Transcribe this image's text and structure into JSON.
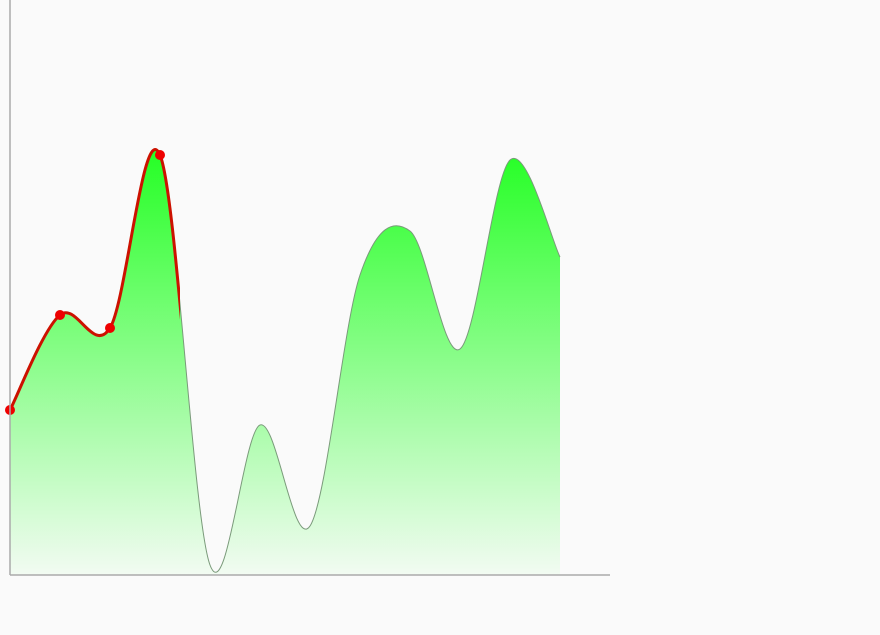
{
  "chart_data": {
    "type": "area",
    "title": "",
    "xlabel": "",
    "ylabel": "",
    "grid": false,
    "legend": false,
    "x": [
      0,
      1,
      2,
      3,
      4,
      5,
      6,
      7,
      8,
      9,
      10,
      11
    ],
    "values": [
      165,
      260,
      247,
      420,
      10,
      150,
      49,
      300,
      344,
      226,
      415,
      318
    ],
    "ylim": [
      0,
      575
    ],
    "xlim": [
      0,
      12
    ],
    "highlight_points": [
      0,
      1,
      2,
      3
    ],
    "highlight_until_x": 3.4,
    "colors": {
      "fill_top": "#22ff22",
      "fill_bottom": "#f2fbf2",
      "line": "#7a9a7a",
      "highlight_line": "#cc1100",
      "highlight_point": "#ee0000",
      "axis": "#aaaaaa"
    }
  }
}
